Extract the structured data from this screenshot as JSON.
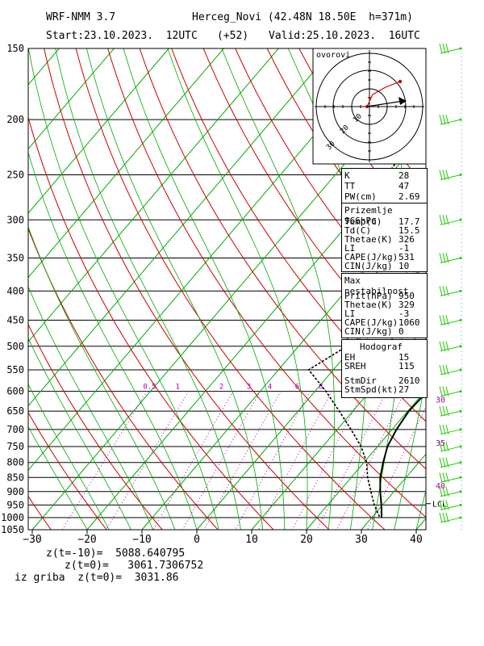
{
  "header": {
    "model": "WRF-NMM 3.7",
    "station": "Herceg_Novi (42.48N 18.50E  h=371m)",
    "start": "Start:23.10.2023.  12UTC",
    "lead": "(+52)",
    "valid": "Valid:25.10.2023.  16UTC"
  },
  "footer": {
    "line1": "z(t=-10)=  5088.640795",
    "line2": "z(t=0)=   3061.7306752",
    "line3": "iz griba  z(t=0)=  3031.86"
  },
  "colors": {
    "isotherm": "#00aa00",
    "dry_adiabat": "#cc0000",
    "mixing_ratio": "#aa00aa",
    "wind": "#22cc00",
    "grid": "#000000"
  },
  "chart_data": {
    "type": "line",
    "title": "",
    "x_tick_labels": [
      "−30",
      "−20",
      "−10",
      "0",
      "10",
      "20",
      "30",
      "40"
    ],
    "x_ticks": [
      -30,
      -20,
      -10,
      0,
      10,
      20,
      30,
      40
    ],
    "pressure_levels": [
      150,
      200,
      250,
      300,
      350,
      400,
      450,
      500,
      550,
      600,
      650,
      700,
      750,
      800,
      850,
      900,
      950,
      1000,
      1050
    ],
    "pressure_range": [
      150,
      1050
    ],
    "temp_range": [
      -30,
      42
    ],
    "mixing_ratio_labels": [
      {
        "text": "0.5",
        "x": -8.6
      },
      {
        "text": "1",
        "x": -3.5
      },
      {
        "text": "2",
        "x": 4.5
      },
      {
        "text": "3",
        "x": 9.5
      },
      {
        "text": "4",
        "x": 13.3
      },
      {
        "text": "6",
        "x": 18.3
      },
      {
        "text": "8",
        "x": 22.6
      }
    ],
    "right_labels": [
      {
        "text": "30",
        "p": 620
      },
      {
        "text": "35",
        "p": 738
      },
      {
        "text": "40",
        "p": 877
      }
    ],
    "lcl_label": "LCL",
    "lcl_pressure": 945,
    "series": [
      {
        "name": "temperature",
        "points": [
          [
            150,
            7.5
          ],
          [
            200,
            3.5
          ],
          [
            250,
            -0.5
          ],
          [
            300,
            0.5
          ],
          [
            350,
            3.5
          ],
          [
            400,
            7.5
          ],
          [
            450,
            11.5
          ],
          [
            500,
            15.0
          ],
          [
            550,
            17.5
          ],
          [
            600,
            20.5
          ],
          [
            650,
            20.2
          ],
          [
            700,
            20.8
          ],
          [
            750,
            21.8
          ],
          [
            800,
            23.5
          ],
          [
            850,
            25.3
          ],
          [
            900,
            27.5
          ],
          [
            950,
            29.8
          ],
          [
            1000,
            31.8
          ]
        ]
      },
      {
        "name": "dew_point",
        "points": [
          [
            150,
            -13
          ],
          [
            200,
            -22
          ],
          [
            250,
            -20.5
          ],
          [
            300,
            -7
          ],
          [
            350,
            -1.5
          ],
          [
            400,
            1
          ],
          [
            450,
            2
          ],
          [
            500,
            -1.2
          ],
          [
            550,
            -4.5
          ],
          [
            600,
            2
          ],
          [
            650,
            7.5
          ],
          [
            700,
            12.5
          ],
          [
            750,
            17
          ],
          [
            800,
            20.5
          ],
          [
            850,
            23
          ],
          [
            900,
            25.8
          ],
          [
            950,
            28.5
          ],
          [
            1000,
            31.5
          ]
        ]
      }
    ],
    "wind_levels": [
      150,
      200,
      250,
      300,
      350,
      400,
      450,
      500,
      550,
      600,
      650,
      700,
      750,
      800,
      850,
      900,
      950,
      1000
    ],
    "hodograph": {
      "label": "ovorovi",
      "ring_labels": [
        "10",
        "20",
        "30"
      ]
    }
  },
  "box_k": {
    "rows": [
      {
        "k": "K",
        "v": "28"
      },
      {
        "k": "TT",
        "v": "47"
      },
      {
        "k": "PW(cm)",
        "v": "2.69"
      }
    ]
  },
  "box_surface": {
    "title": "Prizemlje 966hPa",
    "rows": [
      {
        "k": "Temp(C)",
        "v": "17.7"
      },
      {
        "k": "Td(C)",
        "v": "15.5"
      },
      {
        "k": "Thetae(K)",
        "v": "326"
      },
      {
        "k": "LI",
        "v": "-1"
      },
      {
        "k": "CAPE(J/kg)",
        "v": "531"
      },
      {
        "k": "CIN(J/kg)",
        "v": "10"
      }
    ]
  },
  "box_max": {
    "title": "Max nestabilnost",
    "rows": [
      {
        "k": "Prit(hPa)",
        "v": "950"
      },
      {
        "k": "Thetae(K)",
        "v": "329"
      },
      {
        "k": "LI",
        "v": "-3"
      },
      {
        "k": "CAPE(J/kg)",
        "v": "1060"
      },
      {
        "k": "CIN(J/kg)",
        "v": "0"
      }
    ]
  },
  "box_hodo": {
    "title": "Hodograf",
    "rows": [
      {
        "k": "EH",
        "v": "15"
      },
      {
        "k": "SREH",
        "v": "115"
      },
      {
        "k": "StmDir",
        "v": "2610"
      },
      {
        "k": "StmSpd(kt)",
        "v": "27"
      }
    ]
  }
}
